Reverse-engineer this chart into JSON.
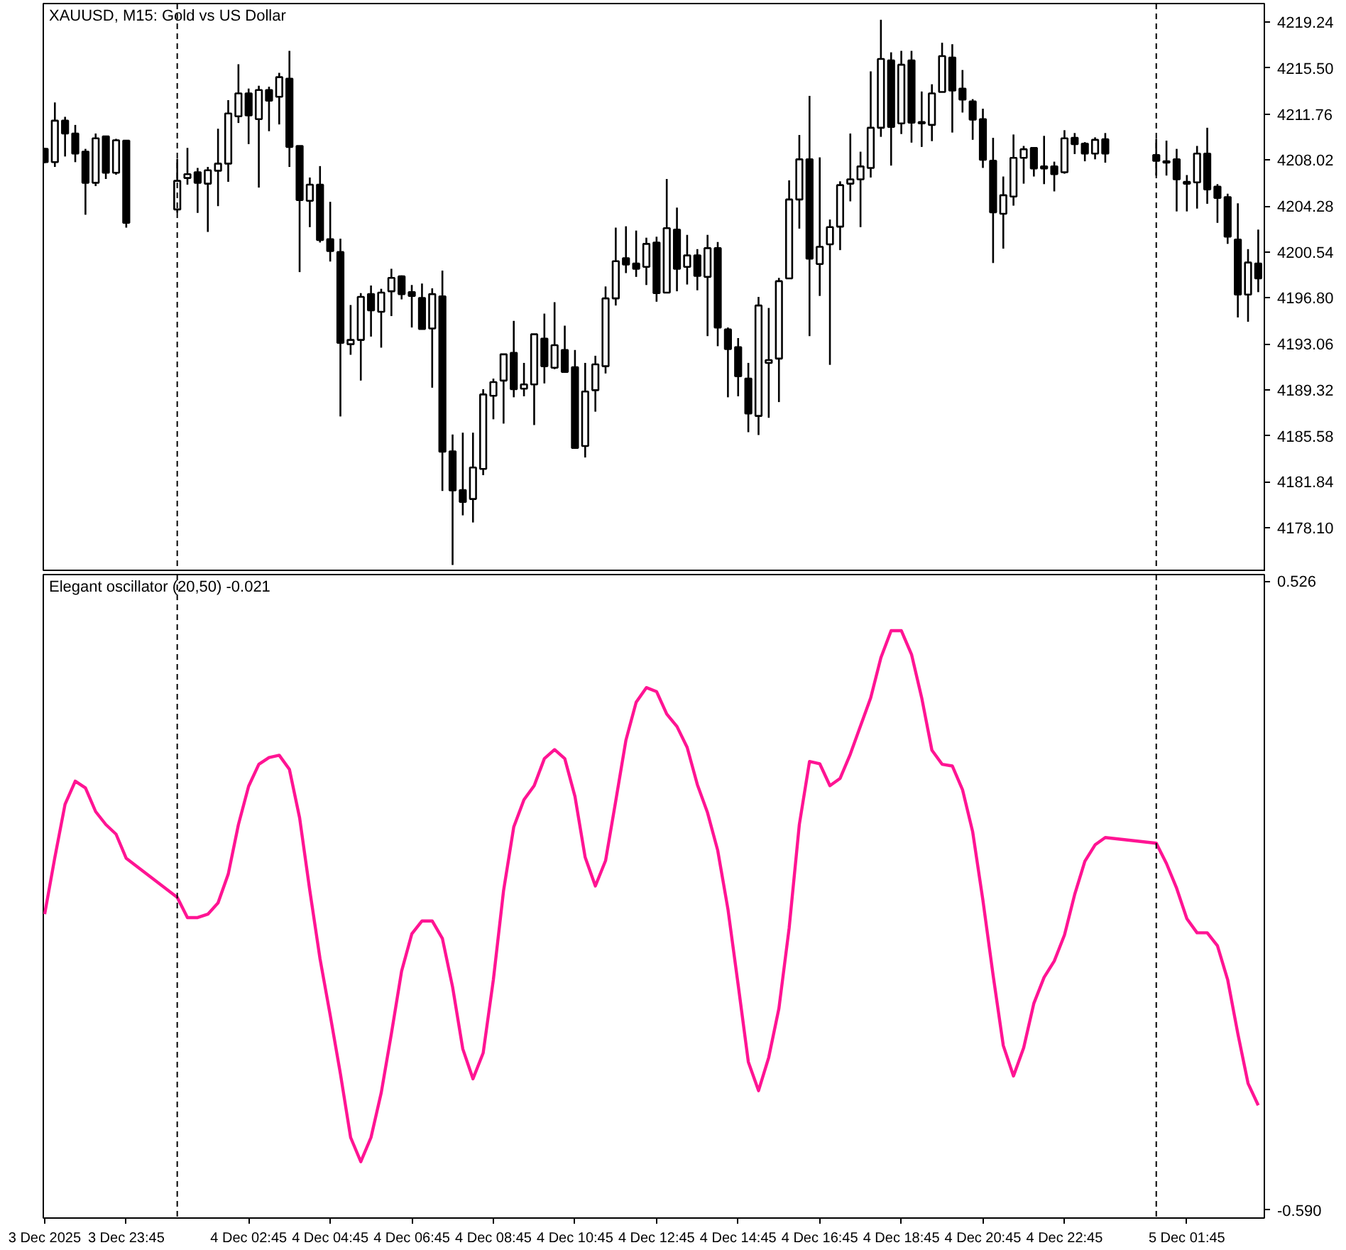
{
  "chart_data": [
    {
      "type": "candlestick",
      "title": "XAUUSD, M15:  Gold vs US Dollar",
      "x": [
        "2025-12-03T21:45",
        "2025-12-03T22:00",
        "2025-12-03T22:15",
        "2025-12-03T22:30",
        "2025-12-03T22:45",
        "2025-12-03T23:00",
        "2025-12-03T23:15",
        "2025-12-03T23:30",
        "2025-12-03T23:45",
        "2025-12-04T01:00",
        "2025-12-04T01:15",
        "2025-12-04T01:30",
        "2025-12-04T01:45",
        "2025-12-04T02:00",
        "2025-12-04T02:15",
        "2025-12-04T02:30",
        "2025-12-04T02:45",
        "2025-12-04T03:00",
        "2025-12-04T03:15",
        "2025-12-04T03:30",
        "2025-12-04T03:45",
        "2025-12-04T04:00",
        "2025-12-04T04:15",
        "2025-12-04T04:30",
        "2025-12-04T04:45",
        "2025-12-04T05:00",
        "2025-12-04T05:15",
        "2025-12-04T05:30",
        "2025-12-04T05:45",
        "2025-12-04T06:00",
        "2025-12-04T06:15",
        "2025-12-04T06:30",
        "2025-12-04T06:45",
        "2025-12-04T07:00",
        "2025-12-04T07:15",
        "2025-12-04T07:30",
        "2025-12-04T07:45",
        "2025-12-04T08:00",
        "2025-12-04T08:15",
        "2025-12-04T08:30",
        "2025-12-04T08:45",
        "2025-12-04T09:00",
        "2025-12-04T09:15",
        "2025-12-04T09:30",
        "2025-12-04T09:45",
        "2025-12-04T10:00",
        "2025-12-04T10:15",
        "2025-12-04T10:30",
        "2025-12-04T10:45",
        "2025-12-04T11:00",
        "2025-12-04T11:15",
        "2025-12-04T11:30",
        "2025-12-04T11:45",
        "2025-12-04T12:00",
        "2025-12-04T12:15",
        "2025-12-04T12:30",
        "2025-12-04T12:45",
        "2025-12-04T13:00",
        "2025-12-04T13:15",
        "2025-12-04T13:30",
        "2025-12-04T13:45",
        "2025-12-04T14:00",
        "2025-12-04T14:15",
        "2025-12-04T14:30",
        "2025-12-04T14:45",
        "2025-12-04T15:00",
        "2025-12-04T15:15",
        "2025-12-04T15:30",
        "2025-12-04T15:45",
        "2025-12-04T16:00",
        "2025-12-04T16:15",
        "2025-12-04T16:30",
        "2025-12-04T16:45",
        "2025-12-04T17:00",
        "2025-12-04T17:15",
        "2025-12-04T17:30",
        "2025-12-04T17:45",
        "2025-12-04T18:00",
        "2025-12-04T18:15",
        "2025-12-04T18:30",
        "2025-12-04T18:45",
        "2025-12-04T19:00",
        "2025-12-04T19:15",
        "2025-12-04T19:30",
        "2025-12-04T19:45",
        "2025-12-04T20:00",
        "2025-12-04T20:15",
        "2025-12-04T20:30",
        "2025-12-04T20:45",
        "2025-12-04T21:00",
        "2025-12-04T21:15",
        "2025-12-04T21:30",
        "2025-12-04T21:45",
        "2025-12-04T22:00",
        "2025-12-04T22:15",
        "2025-12-04T22:30",
        "2025-12-04T22:45",
        "2025-12-04T23:00",
        "2025-12-04T23:15",
        "2025-12-04T23:30",
        "2025-12-04T23:45",
        "2025-12-05T01:00",
        "2025-12-05T01:15",
        "2025-12-05T01:30",
        "2025-12-05T01:45",
        "2025-12-05T02:00",
        "2025-12-05T02:15",
        "2025-12-05T02:30",
        "2025-12-05T02:45",
        "2025-12-05T03:00",
        "2025-12-05T03:15",
        "2025-12-05T03:30"
      ],
      "ohlc": [
        [
          4208.93,
          4209.01,
          4207.77,
          4207.85
        ],
        [
          4207.85,
          4212.71,
          4207.46,
          4211.23
        ],
        [
          4211.23,
          4211.54,
          4208.31,
          4210.18
        ],
        [
          4210.18,
          4210.88,
          4207.85,
          4208.55
        ],
        [
          4208.7,
          4208.93,
          4203.57,
          4206.17
        ],
        [
          4206.17,
          4210.18,
          4205.9,
          4209.79
        ],
        [
          4209.95,
          4209.95,
          4206.48,
          4206.99
        ],
        [
          4206.99,
          4209.75,
          4206.83,
          4209.63
        ],
        [
          4209.6,
          4209.6,
          4202.52,
          4202.91
        ],
        [
          4204.0,
          4208.12,
          4203.76,
          4206.33
        ],
        [
          4206.56,
          4209.01,
          4206.02,
          4206.87
        ],
        [
          4207.03,
          4207.38,
          4203.72,
          4206.17
        ],
        [
          4206.1,
          4207.46,
          4202.17,
          4207.19
        ],
        [
          4207.15,
          4210.57,
          4204.27,
          4207.73
        ],
        [
          4207.73,
          4212.9,
          4206.25,
          4211.81
        ],
        [
          4211.58,
          4215.82,
          4211.04,
          4213.45
        ],
        [
          4213.45,
          4213.84,
          4209.32,
          4211.66
        ],
        [
          4211.35,
          4214.07,
          4205.78,
          4213.72
        ],
        [
          4213.72,
          4213.99,
          4210.37,
          4212.86
        ],
        [
          4213.17,
          4215.12,
          4210.92,
          4214.77
        ],
        [
          4214.65,
          4216.91,
          4207.46,
          4209.09
        ],
        [
          4209.17,
          4209.17,
          4198.9,
          4204.77
        ],
        [
          4204.7,
          4206.6,
          4202.56,
          4206.02
        ],
        [
          4206.02,
          4207.53,
          4201.31,
          4201.51
        ],
        [
          4201.58,
          4204.62,
          4199.76,
          4200.61
        ],
        [
          4200.53,
          4201.62,
          4187.15,
          4193.14
        ],
        [
          4193.03,
          4196.22,
          4192.17,
          4193.38
        ],
        [
          4193.38,
          4197.19,
          4190.07,
          4196.88
        ],
        [
          4197.11,
          4197.81,
          4193.65,
          4195.79
        ],
        [
          4195.67,
          4197.54,
          4192.75,
          4197.23
        ],
        [
          4197.34,
          4199.17,
          4195.32,
          4198.43
        ],
        [
          4198.55,
          4198.63,
          4196.68,
          4197.11
        ],
        [
          4197.27,
          4197.85,
          4194.39,
          4196.96
        ],
        [
          4196.8,
          4197.97,
          4194.27,
          4194.27
        ],
        [
          4194.31,
          4197.58,
          4189.49,
          4197.11
        ],
        [
          4196.92,
          4199.02,
          4181.09,
          4184.28
        ],
        [
          4184.31,
          4185.68,
          4175.06,
          4181.13
        ],
        [
          4181.16,
          4185.83,
          4179.1,
          4180.19
        ],
        [
          4180.43,
          4185.83,
          4178.52,
          4182.99
        ],
        [
          4182.88,
          4189.37,
          4182.37,
          4188.94
        ],
        [
          4188.83,
          4190.23,
          4186.92,
          4189.95
        ],
        [
          4190.07,
          4192.21,
          4186.57,
          4192.21
        ],
        [
          4192.33,
          4194.93,
          4188.71,
          4189.37
        ],
        [
          4189.41,
          4191.51,
          4188.79,
          4189.76
        ],
        [
          4189.76,
          4193.84,
          4186.45,
          4193.84
        ],
        [
          4193.49,
          4195.52,
          4189.84,
          4191.24
        ],
        [
          4191.12,
          4196.45,
          4191.0,
          4192.95
        ],
        [
          4192.56,
          4194.54,
          4190.77,
          4190.77
        ],
        [
          4191.16,
          4192.56,
          4184.59,
          4184.59
        ],
        [
          4184.74,
          4191.51,
          4183.81,
          4189.18
        ],
        [
          4189.29,
          4192.09,
          4187.54,
          4191.39
        ],
        [
          4191.24,
          4197.73,
          4190.65,
          4196.76
        ],
        [
          4196.76,
          4202.52,
          4196.18,
          4199.79
        ],
        [
          4200.03,
          4202.63,
          4198.82,
          4199.52
        ],
        [
          4199.6,
          4202.28,
          4198.51,
          4199.17
        ],
        [
          4199.33,
          4201.7,
          4197.85,
          4201.2
        ],
        [
          4201.31,
          4201.78,
          4196.49,
          4197.19
        ],
        [
          4197.23,
          4206.48,
          4197.23,
          4202.48
        ],
        [
          4202.36,
          4204.15,
          4197.34,
          4199.17
        ],
        [
          4199.33,
          4201.93,
          4197.89,
          4200.26
        ],
        [
          4200.26,
          4200.77,
          4197.42,
          4198.59
        ],
        [
          4198.51,
          4201.93,
          4193.69,
          4200.85
        ],
        [
          4200.85,
          4201.35,
          4192.87,
          4194.39
        ],
        [
          4194.23,
          4194.39,
          4188.71,
          4192.64
        ],
        [
          4192.79,
          4193.53,
          4188.79,
          4190.42
        ],
        [
          4190.23,
          4191.51,
          4185.87,
          4187.39
        ],
        [
          4187.19,
          4196.88,
          4185.64,
          4196.18
        ],
        [
          4191.51,
          4195.98,
          4187.04,
          4191.74
        ],
        [
          4191.86,
          4198.43,
          4188.32,
          4198.16
        ],
        [
          4198.39,
          4206.37,
          4198.39,
          4204.81
        ],
        [
          4204.81,
          4210.06,
          4202.44,
          4208.08
        ],
        [
          4208.08,
          4213.25,
          4193.69,
          4199.99
        ],
        [
          4199.56,
          4208.24,
          4196.96,
          4200.96
        ],
        [
          4201.16,
          4203.18,
          4191.35,
          4202.56
        ],
        [
          4202.6,
          4206.29,
          4200.69,
          4205.98
        ],
        [
          4206.1,
          4210.18,
          4204.66,
          4206.45
        ],
        [
          4206.45,
          4208.7,
          4202.56,
          4207.5
        ],
        [
          4207.38,
          4215.24,
          4206.6,
          4210.65
        ],
        [
          4210.65,
          4219.44,
          4209.91,
          4216.25
        ],
        [
          4216.13,
          4216.79,
          4207.57,
          4210.72
        ],
        [
          4211.0,
          4216.91,
          4210.14,
          4215.78
        ],
        [
          4216.13,
          4216.91,
          4209.44,
          4211.07
        ],
        [
          4211.11,
          4213.6,
          4209.09,
          4211.0
        ],
        [
          4210.88,
          4214.19,
          4209.56,
          4213.45
        ],
        [
          4213.56,
          4217.57,
          4213.56,
          4216.48
        ],
        [
          4216.36,
          4217.45,
          4210.26,
          4213.68
        ],
        [
          4213.84,
          4215.35,
          4211.89,
          4212.94
        ],
        [
          4212.79,
          4212.98,
          4209.67,
          4211.31
        ],
        [
          4211.35,
          4212.2,
          4207.38,
          4208.04
        ],
        [
          4207.96,
          4209.83,
          4199.64,
          4203.76
        ],
        [
          4203.65,
          4206.68,
          4200.81,
          4205.16
        ],
        [
          4205.05,
          4210.1,
          4204.31,
          4208.2
        ],
        [
          4208.2,
          4209.17,
          4206.1,
          4208.9
        ],
        [
          4209.01,
          4209.01,
          4206.68,
          4207.34
        ],
        [
          4207.5,
          4209.99,
          4206.06,
          4207.34
        ],
        [
          4207.5,
          4207.89,
          4205.47,
          4206.87
        ],
        [
          4207.03,
          4210.45,
          4206.91,
          4209.79
        ],
        [
          4209.83,
          4210.22,
          4208.51,
          4209.32
        ],
        [
          4209.36,
          4209.48,
          4207.92,
          4208.55
        ],
        [
          4208.55,
          4209.87,
          4208.08,
          4209.67
        ],
        [
          4209.71,
          4210.22,
          4207.81,
          4208.55
        ],
        [
          4208.43,
          4209.75,
          4206.76,
          4207.96
        ],
        [
          4207.92,
          4209.6,
          4206.76,
          4207.81
        ],
        [
          4208.08,
          4208.93,
          4203.84,
          4206.45
        ],
        [
          4206.25,
          4206.8,
          4203.84,
          4206.1
        ],
        [
          4206.21,
          4209.17,
          4204.07,
          4208.55
        ],
        [
          4208.55,
          4210.65,
          4204.46,
          4205.63
        ],
        [
          4205.86,
          4206.06,
          4202.91,
          4204.93
        ],
        [
          4205.01,
          4205.28,
          4201.2,
          4201.78
        ],
        [
          4201.55,
          4204.5,
          4195.21,
          4197.07
        ],
        [
          4197.07,
          4200.77,
          4194.86,
          4199.68
        ],
        [
          4199.6,
          4202.36,
          4197.27,
          4198.39
        ]
      ],
      "xlim": [
        "2025-12-03T21:43",
        "2025-12-05T03:39"
      ],
      "ylim": [
        4174.51,
        4220.76
      ],
      "yticks": [
        {
          "value": 4219.24,
          "label": "4219.24"
        },
        {
          "value": 4215.5,
          "label": "4215.50"
        },
        {
          "value": 4211.76,
          "label": "4211.76"
        },
        {
          "value": 4208.02,
          "label": "4208.02"
        },
        {
          "value": 4204.28,
          "label": "4204.28"
        },
        {
          "value": 4200.54,
          "label": "4200.54"
        },
        {
          "value": 4196.8,
          "label": "4196.80"
        },
        {
          "value": 4193.06,
          "label": "4193.06"
        },
        {
          "value": 4189.32,
          "label": "4189.32"
        },
        {
          "value": 4185.58,
          "label": "4185.58"
        },
        {
          "value": 4181.84,
          "label": "4181.84"
        },
        {
          "value": 4178.1,
          "label": "4178.10"
        }
      ],
      "tick_labels": "y",
      "ref_lines": [
        {
          "axis": "x",
          "value": "2025-12-04T01:00",
          "color": "#000000",
          "line_style": "dashed"
        },
        {
          "axis": "x",
          "value": "2025-12-05T01:00",
          "color": "#000000",
          "line_style": "dashed"
        }
      ]
    },
    {
      "type": "line",
      "title": "Elegant oscillator (20,50) -0.021",
      "x": [
        "2025-12-03T21:45",
        "2025-12-03T22:00",
        "2025-12-03T22:15",
        "2025-12-03T22:30",
        "2025-12-03T22:45",
        "2025-12-03T23:00",
        "2025-12-03T23:15",
        "2025-12-03T23:30",
        "2025-12-03T23:45",
        "2025-12-04T01:00",
        "2025-12-04T01:15",
        "2025-12-04T01:30",
        "2025-12-04T01:45",
        "2025-12-04T02:00",
        "2025-12-04T02:15",
        "2025-12-04T02:30",
        "2025-12-04T02:45",
        "2025-12-04T03:00",
        "2025-12-04T03:15",
        "2025-12-04T03:30",
        "2025-12-04T03:45",
        "2025-12-04T04:00",
        "2025-12-04T04:15",
        "2025-12-04T04:30",
        "2025-12-04T04:45",
        "2025-12-04T05:00",
        "2025-12-04T05:15",
        "2025-12-04T05:30",
        "2025-12-04T05:45",
        "2025-12-04T06:00",
        "2025-12-04T06:15",
        "2025-12-04T06:30",
        "2025-12-04T06:45",
        "2025-12-04T07:00",
        "2025-12-04T07:15",
        "2025-12-04T07:30",
        "2025-12-04T07:45",
        "2025-12-04T08:00",
        "2025-12-04T08:15",
        "2025-12-04T08:30",
        "2025-12-04T08:45",
        "2025-12-04T09:00",
        "2025-12-04T09:15",
        "2025-12-04T09:30",
        "2025-12-04T09:45",
        "2025-12-04T10:00",
        "2025-12-04T10:15",
        "2025-12-04T10:30",
        "2025-12-04T10:45",
        "2025-12-04T11:00",
        "2025-12-04T11:15",
        "2025-12-04T11:30",
        "2025-12-04T11:45",
        "2025-12-04T12:00",
        "2025-12-04T12:15",
        "2025-12-04T12:30",
        "2025-12-04T12:45",
        "2025-12-04T13:00",
        "2025-12-04T13:15",
        "2025-12-04T13:30",
        "2025-12-04T13:45",
        "2025-12-04T14:00",
        "2025-12-04T14:15",
        "2025-12-04T14:30",
        "2025-12-04T14:45",
        "2025-12-04T15:00",
        "2025-12-04T15:15",
        "2025-12-04T15:30",
        "2025-12-04T15:45",
        "2025-12-04T16:00",
        "2025-12-04T16:15",
        "2025-12-04T16:30",
        "2025-12-04T16:45",
        "2025-12-04T17:00",
        "2025-12-04T17:15",
        "2025-12-04T17:30",
        "2025-12-04T17:45",
        "2025-12-04T18:00",
        "2025-12-04T18:15",
        "2025-12-04T18:30",
        "2025-12-04T18:45",
        "2025-12-04T19:00",
        "2025-12-04T19:15",
        "2025-12-04T19:30",
        "2025-12-04T19:45",
        "2025-12-04T20:00",
        "2025-12-04T20:15",
        "2025-12-04T20:30",
        "2025-12-04T20:45",
        "2025-12-04T21:00",
        "2025-12-04T21:15",
        "2025-12-04T21:30",
        "2025-12-04T21:45",
        "2025-12-04T22:00",
        "2025-12-04T22:15",
        "2025-12-04T22:30",
        "2025-12-04T22:45",
        "2025-12-04T23:00",
        "2025-12-04T23:15",
        "2025-12-04T23:30",
        "2025-12-04T23:45",
        "2025-12-05T01:00",
        "2025-12-05T01:15",
        "2025-12-05T01:30",
        "2025-12-05T01:45",
        "2025-12-05T02:00",
        "2025-12-05T02:15",
        "2025-12-05T02:30",
        "2025-12-05T02:45",
        "2025-12-05T03:00",
        "2025-12-05T03:15",
        "2025-12-05T03:30"
      ],
      "series": [
        {
          "color": "#ff1493",
          "values": [
            -0.065,
            0.036,
            0.13,
            0.171,
            0.159,
            0.117,
            0.094,
            0.077,
            0.034,
            -0.035,
            -0.071,
            -0.071,
            -0.065,
            -0.045,
            0.006,
            0.094,
            0.162,
            0.201,
            0.213,
            0.217,
            0.192,
            0.106,
            -0.023,
            -0.144,
            -0.244,
            -0.348,
            -0.461,
            -0.504,
            -0.461,
            -0.382,
            -0.277,
            -0.166,
            -0.1,
            -0.077,
            -0.077,
            -0.108,
            -0.194,
            -0.304,
            -0.357,
            -0.311,
            -0.181,
            -0.023,
            0.09,
            0.138,
            0.163,
            0.211,
            0.227,
            0.211,
            0.144,
            0.036,
            -0.015,
            0.03,
            0.136,
            0.244,
            0.311,
            0.337,
            0.33,
            0.29,
            0.268,
            0.231,
            0.165,
            0.115,
            0.048,
            -0.056,
            -0.19,
            -0.327,
            -0.378,
            -0.319,
            -0.232,
            -0.09,
            0.094,
            0.206,
            0.202,
            0.163,
            0.176,
            0.219,
            0.269,
            0.319,
            0.39,
            0.438,
            0.438,
            0.396,
            0.319,
            0.226,
            0.201,
            0.198,
            0.156,
            0.081,
            -0.04,
            -0.173,
            -0.298,
            -0.352,
            -0.302,
            -0.223,
            -0.177,
            -0.148,
            -0.102,
            -0.03,
            0.029,
            0.058,
            0.071,
            0.061,
            0.025,
            -0.019,
            -0.073,
            -0.098,
            -0.098,
            -0.121,
            -0.181,
            -0.277,
            -0.365,
            -0.404
          ]
        }
      ],
      "xlim": [
        "2025-12-03T21:43",
        "2025-12-05T03:39"
      ],
      "xticks": [
        {
          "value": "2025-12-03T21:45",
          "label": "3 Dec 2025"
        },
        {
          "value": "2025-12-03T23:45",
          "label": "3 Dec 23:45"
        },
        {
          "value": "2025-12-04T02:45",
          "label": "4 Dec 02:45"
        },
        {
          "value": "2025-12-04T04:45",
          "label": "4 Dec 04:45"
        },
        {
          "value": "2025-12-04T06:45",
          "label": "4 Dec 06:45"
        },
        {
          "value": "2025-12-04T08:45",
          "label": "4 Dec 08:45"
        },
        {
          "value": "2025-12-04T10:45",
          "label": "4 Dec 10:45"
        },
        {
          "value": "2025-12-04T12:45",
          "label": "4 Dec 12:45"
        },
        {
          "value": "2025-12-04T14:45",
          "label": "4 Dec 14:45"
        },
        {
          "value": "2025-12-04T16:45",
          "label": "4 Dec 16:45"
        },
        {
          "value": "2025-12-04T18:45",
          "label": "4 Dec 18:45"
        },
        {
          "value": "2025-12-04T20:45",
          "label": "4 Dec 20:45"
        },
        {
          "value": "2025-12-04T22:45",
          "label": "4 Dec 22:45"
        },
        {
          "value": "2025-12-05T01:45",
          "label": "5 Dec 01:45"
        }
      ],
      "ylim": [
        -0.604,
        0.5375
      ],
      "yticks": [
        {
          "value": 0.526,
          "label": "0.526"
        },
        {
          "value": -0.59,
          "label": "-0.590"
        }
      ],
      "ref_lines": [
        {
          "axis": "x",
          "value": "2025-12-04T01:00",
          "color": "#000000",
          "line_style": "dashed"
        },
        {
          "axis": "x",
          "value": "2025-12-05T01:00",
          "color": "#000000",
          "line_style": "dashed"
        }
      ]
    }
  ]
}
